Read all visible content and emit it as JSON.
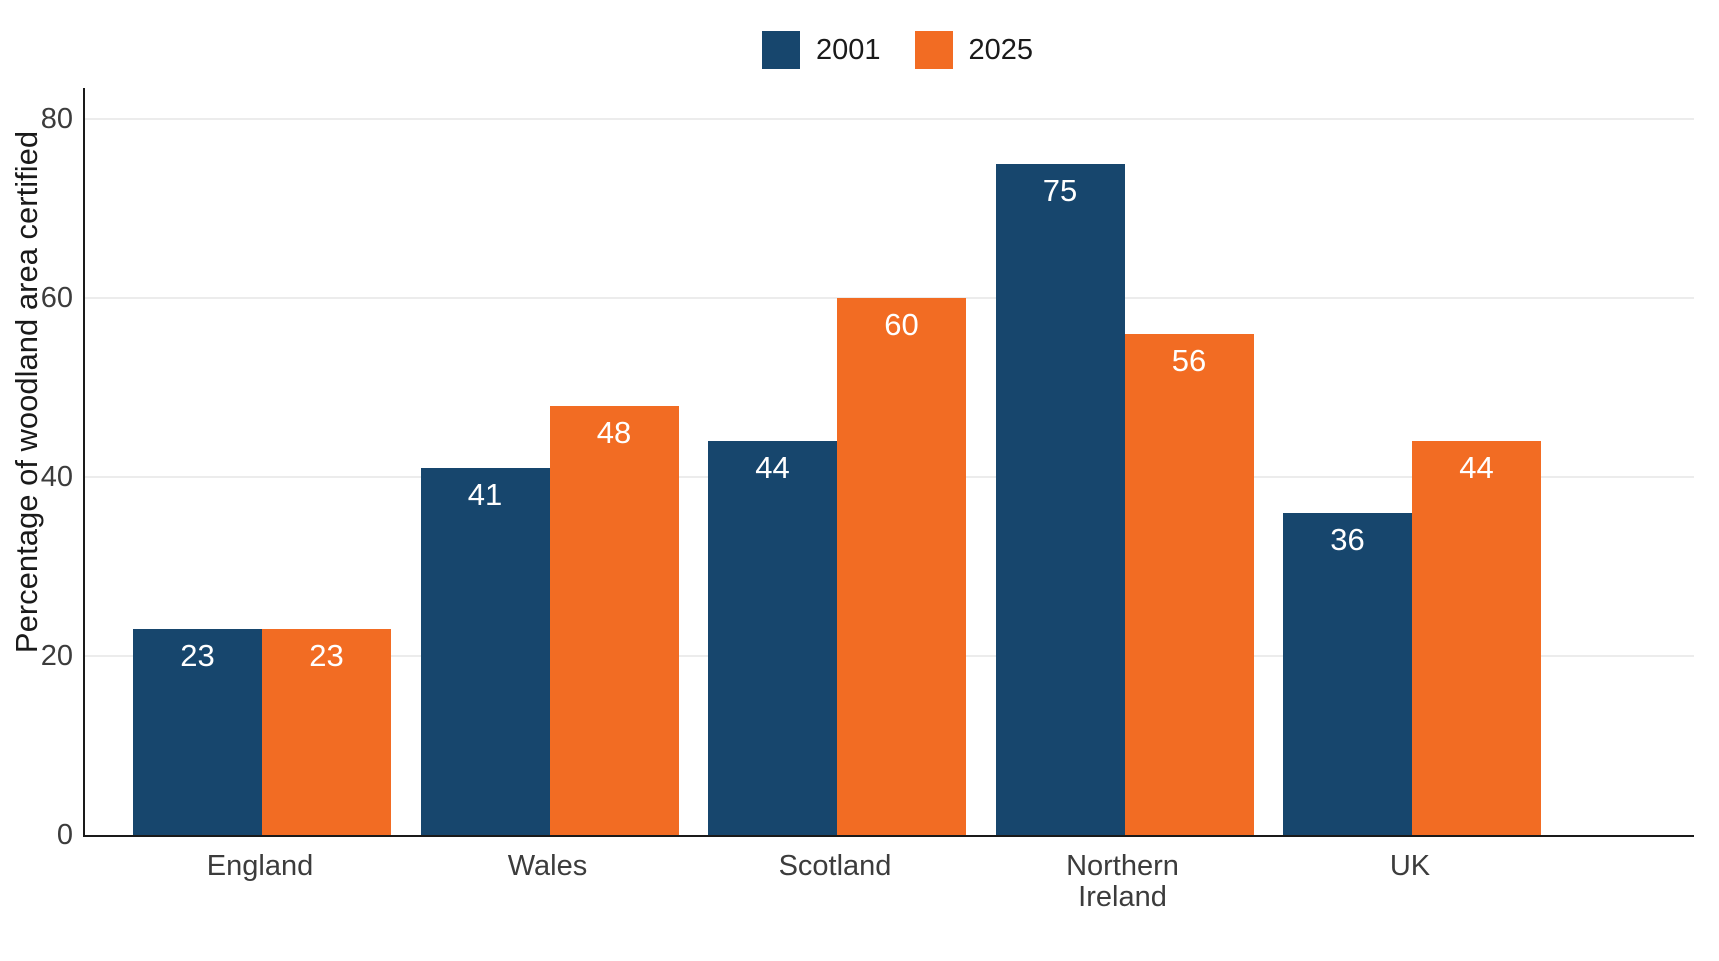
{
  "legend": {
    "items": [
      {
        "label": "2001",
        "color": "#17466D"
      },
      {
        "label": "2025",
        "color": "#F26C23"
      }
    ]
  },
  "chart_data": {
    "type": "bar",
    "title": "",
    "xlabel": "",
    "ylabel": "Percentage of woodland area certified",
    "categories": [
      "England",
      "Wales",
      "Scotland",
      "Northern Ireland",
      "UK"
    ],
    "series": [
      {
        "name": "2001",
        "color": "#17466D",
        "values": [
          23,
          41,
          44,
          75,
          36
        ]
      },
      {
        "name": "2025",
        "color": "#F26C23",
        "values": [
          23,
          48,
          60,
          56,
          44
        ]
      }
    ],
    "yticks": [
      0,
      20,
      40,
      60,
      80
    ],
    "ylim": [
      0,
      83.5
    ],
    "grid": "horizontal-light",
    "legend_position": "top-center",
    "value_labels": "white numbers inside top of each bar",
    "colors": {
      "gridline": "#ECECEC",
      "axis_line": "#1A1A1A",
      "tick_text": "#3C3C3C",
      "value_label_text": "#FFFFFF"
    }
  }
}
